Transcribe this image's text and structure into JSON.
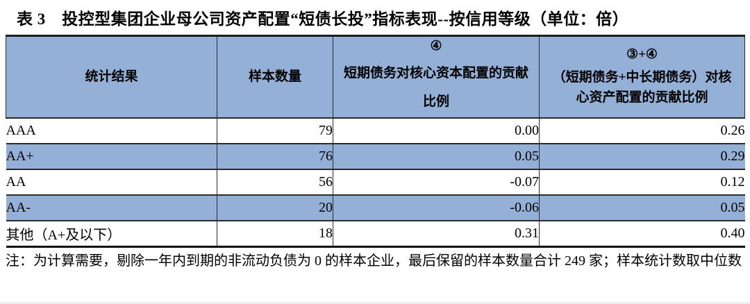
{
  "page": {
    "title": "表 3　投控型集团企业母公司资产配置“短债长投”指标表现--按信用等级（单位：倍）",
    "note": "注：为计算需要，剔除一年内到期的非流动负债为 0 的样本企业，最后保留的样本数量合计 249 家；样本统计数取中位数"
  },
  "table": {
    "header": {
      "stat_result": "统计结果",
      "sample_count": "样本数量",
      "col3_symbol": "④",
      "col3_label": "短期债务对核心资本配置的贡献比例",
      "col4_symbol": "③+④",
      "col4_label": "（短期债务+中长期债务）对核心资产配置的贡献比例"
    },
    "rows": [
      {
        "rating": "AAA",
        "samples": "79",
        "short_debt_contribution": "0.00",
        "combined_contribution": "0.26"
      },
      {
        "rating": "AA+",
        "samples": "76",
        "short_debt_contribution": "0.05",
        "combined_contribution": "0.29"
      },
      {
        "rating": "AA",
        "samples": "56",
        "short_debt_contribution": "-0.07",
        "combined_contribution": "0.12"
      },
      {
        "rating": "AA-",
        "samples": "20",
        "short_debt_contribution": "-0.06",
        "combined_contribution": "0.05"
      },
      {
        "rating": "其他（A+及以下）",
        "samples": "18",
        "short_debt_contribution": "0.31",
        "combined_contribution": "0.40"
      }
    ]
  },
  "colors": {
    "header_bg": "#94b0d6",
    "row_highlight_bg": "#94b0d6",
    "border_dark": "#2a2a2a",
    "text": "#000000"
  }
}
